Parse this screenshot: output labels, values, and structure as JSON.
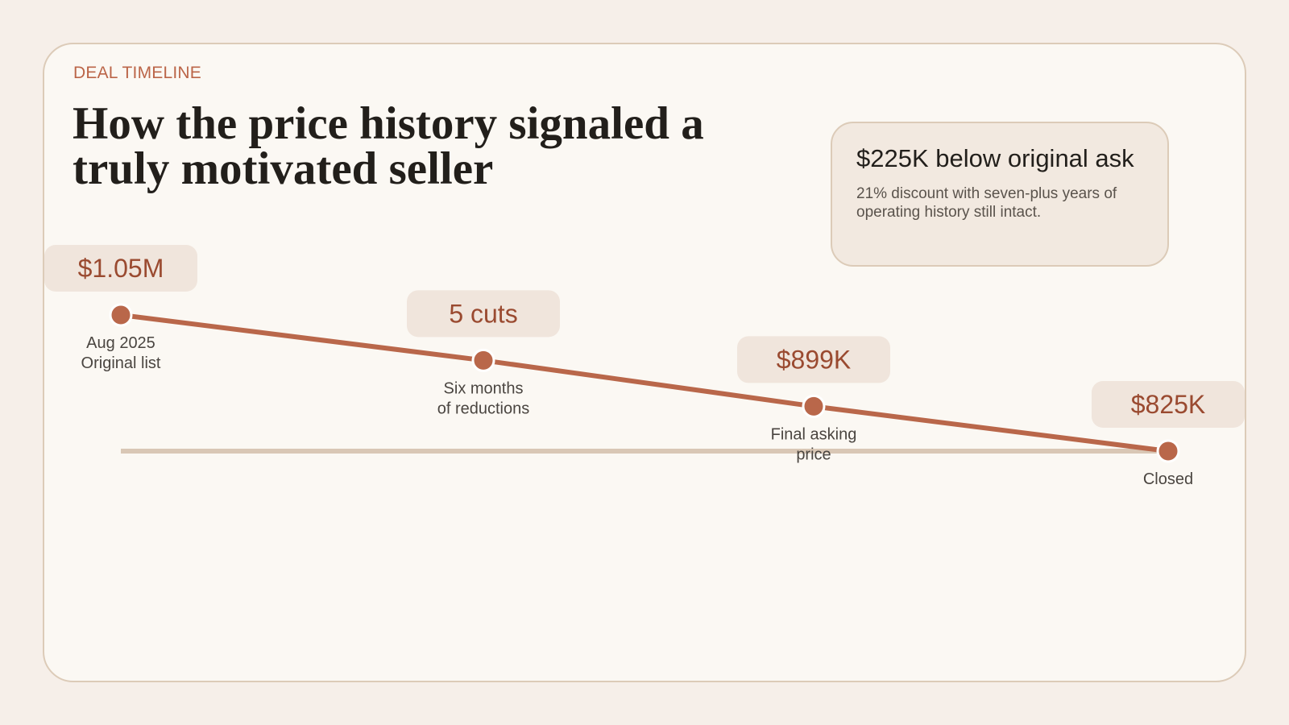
{
  "header": {
    "eyebrow": "DEAL TIMELINE",
    "title": "How the price history signaled a truly motivated seller"
  },
  "callout": {
    "title": "$225K below original ask",
    "subtitle": "21% discount with seven-plus years of operating history still intact."
  },
  "colors": {
    "accent": "#b9674a",
    "label_text": "#9a4a30",
    "pill_bg": "#f0e5dc",
    "baseline": "#d9c7b5"
  },
  "chart_data": {
    "type": "line",
    "title": "",
    "xlabel": "",
    "ylabel": "",
    "points": [
      {
        "tag": "$1.05M",
        "label_lines": [
          "Aug 2025",
          "Original list"
        ],
        "value": 1050
      },
      {
        "tag": "5 cuts",
        "label_lines": [
          "Six months",
          "of reductions"
        ],
        "value": 975
      },
      {
        "tag": "$899K",
        "label_lines": [
          "Final asking",
          "price"
        ],
        "value": 899
      },
      {
        "tag": "$825K",
        "label_lines": [
          "Closed"
        ],
        "value": 825
      }
    ],
    "unit": "$K",
    "grid": false
  }
}
